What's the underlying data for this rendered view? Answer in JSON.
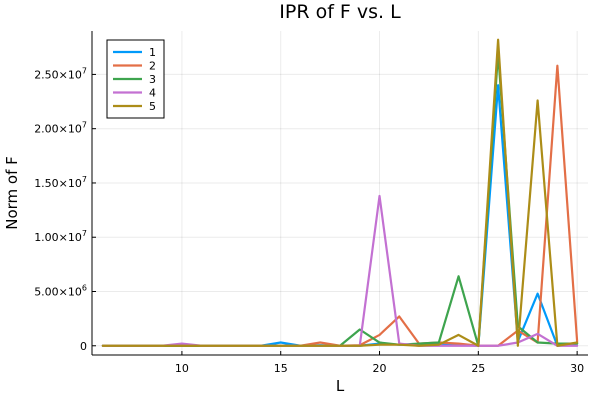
{
  "chart_data": {
    "type": "line",
    "title": "IPR of F vs. L",
    "xlabel": "L",
    "ylabel": "Norm of F",
    "xlim": [
      5.45,
      30.55
    ],
    "ylim": [
      -850000,
      29000000
    ],
    "grid": true,
    "legend_position": "top-left",
    "x_ticks": [
      {
        "value": 10,
        "label": "10"
      },
      {
        "value": 15,
        "label": "15"
      },
      {
        "value": 20,
        "label": "20"
      },
      {
        "value": 25,
        "label": "25"
      },
      {
        "value": 30,
        "label": "30"
      }
    ],
    "y_ticks": [
      {
        "value": 0,
        "label": "0",
        "mantissa": "",
        "exp": ""
      },
      {
        "value": 5000000,
        "label": "5.00×10",
        "mantissa": "5.00×10",
        "exp": "6"
      },
      {
        "value": 10000000,
        "label": "1.00×10",
        "mantissa": "1.00×10",
        "exp": "7"
      },
      {
        "value": 15000000,
        "label": "1.50×10",
        "mantissa": "1.50×10",
        "exp": "7"
      },
      {
        "value": 20000000,
        "label": "2.00×10",
        "mantissa": "2.00×10",
        "exp": "7"
      },
      {
        "value": 25000000,
        "label": "2.50×10",
        "mantissa": "2.50×10",
        "exp": "7"
      }
    ],
    "x": [
      6,
      7,
      8,
      9,
      10,
      11,
      12,
      13,
      14,
      15,
      16,
      17,
      18,
      19,
      20,
      21,
      22,
      23,
      24,
      25,
      26,
      27,
      28,
      29,
      30
    ],
    "series": [
      {
        "name": "1",
        "color": "#009AFA",
        "values": [
          0,
          0,
          0,
          0,
          0,
          0,
          0,
          0,
          0,
          300000,
          0,
          50000,
          0,
          0,
          200000,
          100000,
          100000,
          200000,
          100000,
          0,
          24000000,
          400000,
          4800000,
          0,
          200000
        ]
      },
      {
        "name": "2",
        "color": "#E36F47",
        "values": [
          0,
          0,
          0,
          0,
          0,
          0,
          0,
          0,
          0,
          0,
          0,
          300000,
          0,
          50000,
          1000000,
          2700000,
          200000,
          300000,
          200000,
          0,
          0,
          1400000,
          300000,
          25800000,
          400000
        ]
      },
      {
        "name": "3",
        "color": "#3EA44E",
        "values": [
          0,
          0,
          0,
          0,
          0,
          0,
          0,
          0,
          0,
          0,
          0,
          0,
          0,
          1500000,
          300000,
          100000,
          200000,
          300000,
          6400000,
          0,
          27000000,
          1800000,
          300000,
          200000,
          200000
        ]
      },
      {
        "name": "4",
        "color": "#C371D2",
        "values": [
          0,
          0,
          0,
          0,
          200000,
          0,
          0,
          0,
          0,
          0,
          0,
          0,
          0,
          0,
          13800000,
          200000,
          0,
          0,
          0,
          0,
          0,
          300000,
          1100000,
          0,
          0
        ]
      },
      {
        "name": "5",
        "color": "#AC8D18",
        "values": [
          0,
          0,
          0,
          0,
          0,
          0,
          0,
          0,
          0,
          0,
          0,
          0,
          0,
          0,
          100000,
          100000,
          0,
          100000,
          1000000,
          0,
          28200000,
          0,
          22600000,
          0,
          300000
        ]
      }
    ]
  }
}
